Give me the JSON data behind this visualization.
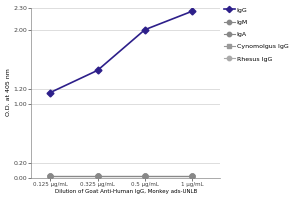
{
  "x_labels": [
    "0.125 μg/mL",
    "0.325 μg/mL",
    "0.5 μg/mL",
    "1 μg/mL"
  ],
  "series": {
    "IgG": {
      "y": [
        1.15,
        1.45,
        2.0,
        2.25
      ],
      "color": "#2d1f8a",
      "marker": "D",
      "markersize": 3.5,
      "linewidth": 1.2,
      "zorder": 5
    },
    "IgM": {
      "y": [
        0.02,
        0.02,
        0.02,
        0.02
      ],
      "color": "#888888",
      "marker": "o",
      "markersize": 3.5,
      "linewidth": 0.8,
      "zorder": 4
    },
    "IgA": {
      "y": [
        0.02,
        0.02,
        0.02,
        0.02
      ],
      "color": "#888888",
      "marker": "o",
      "markersize": 3.5,
      "linewidth": 0.8,
      "zorder": 3
    },
    "Cynomolgus IgG": {
      "y": [
        0.02,
        0.02,
        0.02,
        0.02
      ],
      "color": "#999999",
      "marker": "s",
      "markersize": 3.5,
      "linewidth": 0.8,
      "zorder": 2
    },
    "Rhesus IgG": {
      "y": [
        0.02,
        0.02,
        0.02,
        0.02
      ],
      "color": "#aaaaaa",
      "marker": "o",
      "markersize": 3.5,
      "linewidth": 0.8,
      "zorder": 1
    }
  },
  "series_order": [
    "IgG",
    "IgM",
    "IgA",
    "Cynomolgus IgG",
    "Rhesus IgG"
  ],
  "ylabel": "O.D. at 405 nm",
  "xlabel": "Dilution of Goat Anti-Human IgG, Monkey ads-UNLB",
  "ylim": [
    0.0,
    2.3
  ],
  "yticks": [
    0.0,
    0.2,
    1.0,
    1.2,
    2.0,
    2.3
  ],
  "ytick_labels": [
    "0.00",
    "0.20",
    "1.00",
    "1.20",
    "2.00",
    "2.30"
  ],
  "background_color": "#ffffff",
  "grid_color": "#d0d0d0",
  "figsize": [
    3.0,
    2.0
  ],
  "dpi": 100
}
